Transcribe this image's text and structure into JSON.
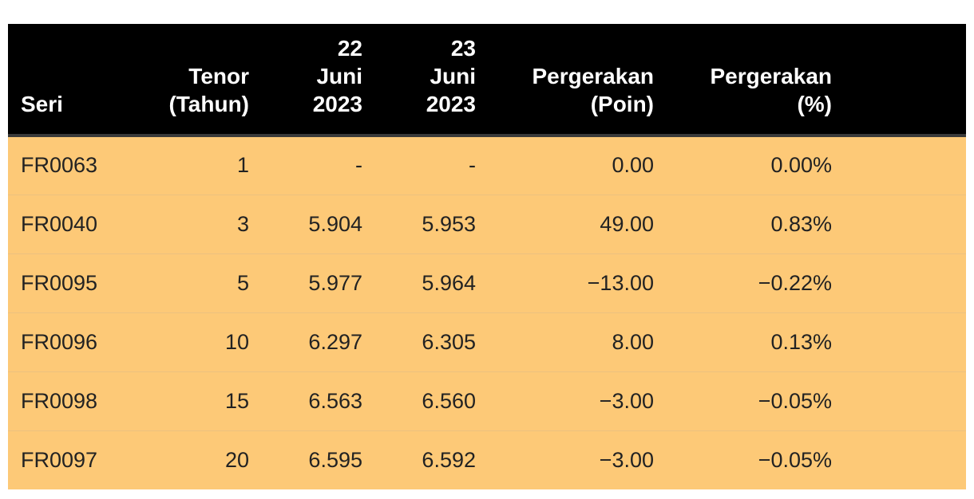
{
  "table": {
    "headers": {
      "seri": [
        "Seri"
      ],
      "tenor": [
        "Tenor",
        "(Tahun)"
      ],
      "d22": [
        "22",
        "Juni",
        "2023"
      ],
      "d23": [
        "23",
        "Juni",
        "2023"
      ],
      "poin": [
        "Pergerakan",
        "(Poin)"
      ],
      "pct": [
        "Pergerakan",
        "(%)"
      ]
    },
    "rows": [
      {
        "seri": "FR0063",
        "tenor": "1",
        "d22": "-",
        "d23": "-",
        "poin": "0.00",
        "pct": "0.00%"
      },
      {
        "seri": "FR0040",
        "tenor": "3",
        "d22": "5.904",
        "d23": "5.953",
        "poin": "49.00",
        "pct": "0.83%"
      },
      {
        "seri": "FR0095",
        "tenor": "5",
        "d22": "5.977",
        "d23": "5.964",
        "poin": "−13.00",
        "pct": "−0.22%"
      },
      {
        "seri": "FR0096",
        "tenor": "10",
        "d22": "6.297",
        "d23": "6.305",
        "poin": "8.00",
        "pct": "0.13%"
      },
      {
        "seri": "FR0098",
        "tenor": "15",
        "d22": "6.563",
        "d23": "6.560",
        "poin": "−3.00",
        "pct": "−0.05%"
      },
      {
        "seri": "FR0097",
        "tenor": "20",
        "d22": "6.595",
        "d23": "6.592",
        "poin": "−3.00",
        "pct": "−0.05%"
      }
    ]
  },
  "colors": {
    "header_bg": "#000000",
    "header_text": "#ffffff",
    "row_bg": "#fdc977",
    "row_text": "#222222"
  }
}
